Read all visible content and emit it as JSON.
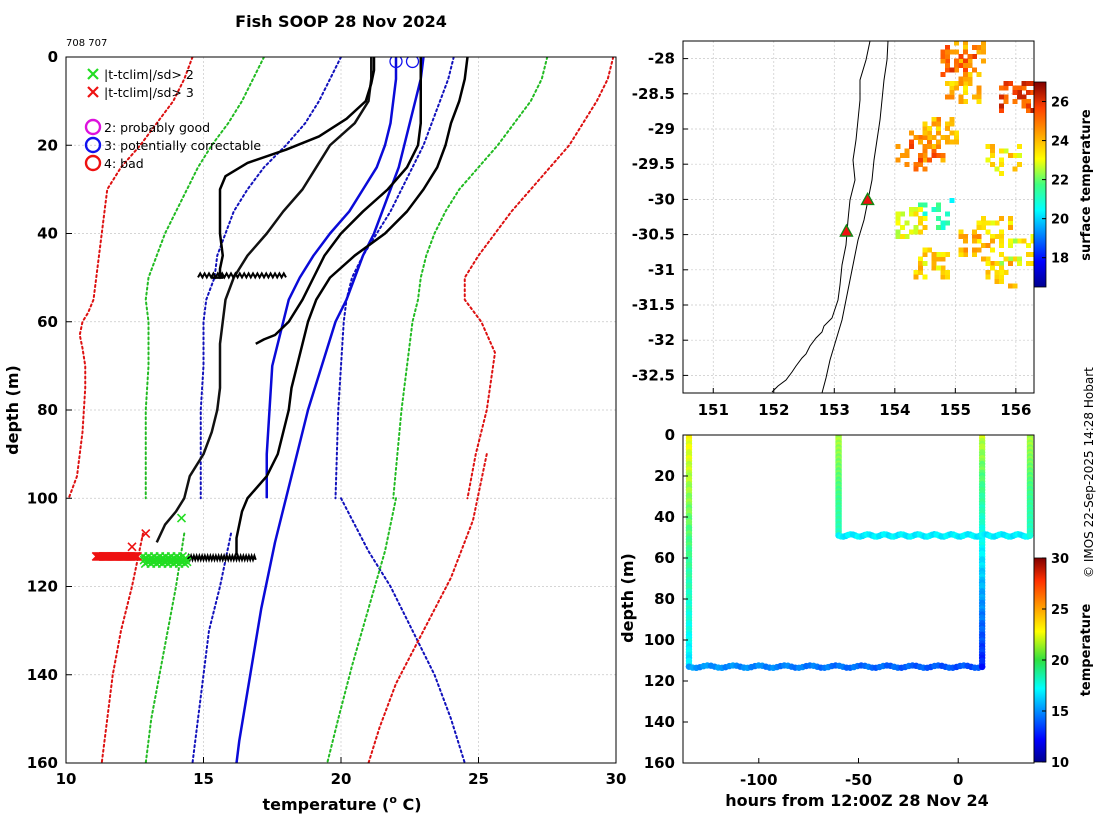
{
  "figure": {
    "title": "Fish SOOP 28 Nov 2024",
    "id_label": "708 707",
    "credit": "© IMOS 22-Sep-2025 14:28 Hobart"
  },
  "chart_data": [
    {
      "name": "profile",
      "type": "line",
      "xlabel": "temperature (",
      "xlabel_sup": "o",
      "xlabel_tail": " C)",
      "ylabel": "depth (m)",
      "xlim": [
        10,
        30
      ],
      "ylim": [
        0,
        160
      ],
      "xticks": [
        10,
        15,
        20,
        25,
        30
      ],
      "yticks": [
        0,
        20,
        40,
        60,
        80,
        100,
        120,
        140,
        160
      ],
      "legend": [
        {
          "symbol": "×",
          "color": "#22dd22",
          "label": "|t-tclim|/sd> 2"
        },
        {
          "symbol": "×",
          "color": "#ee1111",
          "label": "|t-tclim|/sd> 3"
        },
        {
          "symbol": "○",
          "color": "#dd11dd",
          "label": "2: probably good"
        },
        {
          "symbol": "○",
          "color": "#1111ee",
          "label": "3: potentially correctable"
        },
        {
          "symbol": "○",
          "color": "#ee1111",
          "label": "4: bad"
        }
      ],
      "series": [
        {
          "name": "clim-sd3-left",
          "color": "#dd1111",
          "style": "dotted",
          "x": [
            14.6,
            14.3,
            13.9,
            13.3,
            12.7,
            12.0,
            11.5,
            11.4,
            11.3,
            11.2,
            11.1,
            11.0,
            10.8,
            10.6,
            10.5,
            10.6,
            10.7,
            10.7,
            10.6,
            10.4,
            10.1
          ],
          "y": [
            0,
            5,
            10,
            15,
            20,
            25,
            30,
            35,
            40,
            45,
            50,
            55,
            58,
            60,
            63,
            66,
            70,
            75,
            85,
            95,
            100
          ]
        },
        {
          "name": "clim-sd2-left",
          "color": "#22bb22",
          "style": "dotted",
          "x": [
            17.2,
            16.8,
            16.4,
            15.9,
            15.3,
            14.8,
            14.4,
            14.0,
            13.6,
            13.3,
            13.0,
            12.9,
            13.0,
            13.0,
            12.9,
            12.9
          ],
          "y": [
            0,
            5,
            10,
            15,
            20,
            25,
            30,
            35,
            40,
            45,
            50,
            55,
            60,
            70,
            80,
            100
          ]
        },
        {
          "name": "clim-sd1-left",
          "color": "#1111bb",
          "style": "dotted",
          "x": [
            20.0,
            19.6,
            19.2,
            18.7,
            18.0,
            17.2,
            16.6,
            16.1,
            15.8,
            15.5,
            15.4,
            15.1,
            15.0,
            15.0,
            14.9,
            14.9
          ],
          "y": [
            0,
            5,
            10,
            15,
            20,
            25,
            30,
            35,
            40,
            45,
            50,
            55,
            60,
            70,
            80,
            100
          ]
        },
        {
          "name": "clim-mean",
          "color": "#111111",
          "style": "solid",
          "x": [
            21.1,
            21.1,
            21.0,
            20.5,
            19.6,
            19.1,
            18.6,
            17.9,
            17.3,
            16.6,
            16.1,
            15.8,
            15.7,
            15.6,
            15.6,
            15.6,
            15.5,
            15.3,
            15.0,
            14.5,
            14.3,
            14.0,
            13.6,
            13.3
          ],
          "y": [
            0,
            5,
            10,
            15,
            20,
            25,
            30,
            35,
            40,
            45,
            50,
            55,
            60,
            65,
            70,
            75,
            80,
            85,
            90,
            95,
            100,
            103,
            106,
            110
          ]
        },
        {
          "name": "clim-sd1-right",
          "color": "#1111bb",
          "style": "dotted",
          "x": [
            24.1,
            23.9,
            23.6,
            23.3,
            23.0,
            22.6,
            22.2,
            21.8,
            21.3,
            20.8,
            20.4,
            20.2,
            20.1,
            20.0,
            19.9,
            19.8
          ],
          "y": [
            0,
            5,
            10,
            15,
            20,
            25,
            30,
            35,
            40,
            45,
            50,
            55,
            60,
            70,
            80,
            100
          ]
        },
        {
          "name": "clim-sd2-right",
          "color": "#22bb22",
          "style": "dotted",
          "x": [
            27.5,
            27.3,
            26.9,
            26.3,
            25.7,
            25.0,
            24.3,
            23.8,
            23.4,
            23.1,
            22.9,
            22.8,
            22.6,
            22.4,
            22.2,
            21.9
          ],
          "y": [
            0,
            5,
            10,
            15,
            20,
            25,
            30,
            35,
            40,
            45,
            50,
            55,
            60,
            70,
            80,
            100
          ]
        },
        {
          "name": "clim-sd3-right",
          "color": "#dd1111",
          "style": "dotted",
          "x": [
            29.9,
            29.7,
            29.3,
            28.8,
            28.3,
            27.6,
            26.9,
            26.2,
            25.6,
            25.0,
            24.5,
            24.5,
            25.1,
            25.6,
            25.3,
            24.9,
            24.6
          ],
          "y": [
            0,
            5,
            10,
            15,
            20,
            25,
            30,
            35,
            40,
            45,
            50,
            55,
            60,
            67,
            80,
            90,
            100
          ]
        },
        {
          "name": "sd1-right-deep",
          "color": "#1111bb",
          "style": "dotted",
          "x": [
            20.0,
            21.0,
            21.8,
            22.6,
            23.4,
            24.0,
            24.4,
            24.5
          ],
          "y": [
            100,
            112,
            120,
            130,
            140,
            150,
            158,
            160
          ]
        },
        {
          "name": "sd1-left-deep",
          "color": "#1111bb",
          "style": "dotted",
          "x": [
            16.0,
            15.6,
            15.2,
            15.0,
            14.8,
            14.6
          ],
          "y": [
            108,
            120,
            130,
            140,
            150,
            160
          ]
        },
        {
          "name": "sd2-left-deep",
          "color": "#22bb22",
          "style": "dotted",
          "x": [
            14.3,
            14.0,
            13.7,
            13.4,
            13.1,
            12.9
          ],
          "y": [
            108,
            120,
            130,
            140,
            150,
            160
          ]
        },
        {
          "name": "sd2-right-deep",
          "color": "#22bb22",
          "style": "dotted",
          "x": [
            22.0,
            21.6,
            21.0,
            20.4,
            19.9,
            19.5
          ],
          "y": [
            100,
            112,
            125,
            138,
            150,
            160
          ]
        },
        {
          "name": "sd3-left-deep",
          "color": "#dd1111",
          "style": "dotted",
          "x": [
            12.8,
            12.4,
            12.0,
            11.7,
            11.5,
            11.3
          ],
          "y": [
            108,
            120,
            130,
            140,
            150,
            160
          ]
        },
        {
          "name": "sd3-right-deep",
          "color": "#dd1111",
          "style": "dotted",
          "x": [
            25.3,
            24.8,
            24.0,
            23.0,
            22.0,
            21.4,
            21.0
          ],
          "y": [
            90,
            105,
            118,
            130,
            142,
            152,
            160
          ]
        },
        {
          "name": "blue-profile-1",
          "color": "#0a0ad8",
          "style": "solid",
          "x": [
            22.0,
            22.0,
            21.9,
            21.8,
            21.6,
            21.3,
            20.8,
            20.3,
            19.6,
            19.0,
            18.5,
            18.1,
            17.9,
            17.7,
            17.5,
            17.4,
            17.3,
            17.3
          ],
          "y": [
            0,
            5,
            10,
            15,
            20,
            25,
            30,
            35,
            40,
            45,
            50,
            55,
            60,
            65,
            70,
            80,
            90,
            100
          ]
        },
        {
          "name": "blue-profile-2",
          "color": "#0a0ad8",
          "style": "solid",
          "x": [
            23.0,
            22.9,
            22.7,
            22.5,
            22.3,
            22.1,
            21.8,
            21.5,
            21.2,
            20.8,
            20.5,
            20.2,
            19.8,
            19.3,
            18.8,
            18.2,
            17.6,
            17.1,
            16.7,
            16.3,
            16.2
          ],
          "y": [
            0,
            5,
            10,
            15,
            20,
            25,
            30,
            35,
            40,
            45,
            50,
            55,
            60,
            70,
            80,
            95,
            110,
            125,
            140,
            155,
            160
          ]
        },
        {
          "name": "black-profile-1",
          "color": "#000000",
          "style": "solid",
          "x": [
            21.2,
            21.2,
            21.1,
            20.9,
            20.2,
            19.2,
            18.0,
            16.6,
            15.8,
            15.6,
            15.6,
            15.6,
            15.7,
            15.6,
            15.6,
            15.7,
            15.5,
            15.3
          ],
          "y": [
            0,
            3,
            6,
            10,
            14,
            18,
            21,
            24,
            27,
            30,
            35,
            40,
            45,
            48,
            49,
            50,
            50,
            50
          ]
        },
        {
          "name": "black-profile-2",
          "color": "#000000",
          "style": "solid",
          "x": [
            24.6,
            24.5,
            24.3,
            24.0,
            23.8,
            23.5,
            23.0,
            22.4,
            21.6,
            20.5,
            19.6,
            19.1,
            18.8,
            18.6,
            18.4,
            18.2,
            18.1,
            17.9,
            17.7,
            17.3,
            16.6,
            16.4,
            16.3,
            16.2,
            16.2,
            16.2
          ],
          "y": [
            0,
            5,
            10,
            15,
            20,
            25,
            30,
            35,
            40,
            45,
            50,
            55,
            60,
            65,
            70,
            75,
            80,
            85,
            90,
            95,
            100,
            103,
            106,
            109,
            112,
            113
          ]
        },
        {
          "name": "black-profile-3",
          "color": "#000000",
          "style": "solid",
          "x": [
            22.9,
            22.9,
            22.9,
            22.9,
            22.8,
            22.4,
            21.7,
            20.8,
            20.0,
            19.4,
            19.0,
            18.6,
            18.1,
            17.6,
            17.2,
            16.9
          ],
          "y": [
            0,
            5,
            10,
            15,
            20,
            25,
            30,
            35,
            40,
            45,
            50,
            55,
            60,
            63,
            64,
            65
          ]
        }
      ],
      "flags_circle": [
        {
          "x": 22.0,
          "y": 1
        },
        {
          "x": 22.6,
          "y": 1
        }
      ],
      "flag_x_green_range": [
        12.8,
        14.4
      ],
      "flag_x_red_range": [
        11.1,
        12.6
      ],
      "flag_depth": 114
    },
    {
      "name": "map",
      "type": "heatmap",
      "xlim": [
        150.5,
        156.3
      ],
      "ylim": [
        -32.75,
        -27.75
      ],
      "xticks": [
        151,
        152,
        153,
        154,
        155,
        156
      ],
      "yticks": [
        -28,
        -28.5,
        -29,
        -29.5,
        -30,
        -30.5,
        -31,
        -31.5,
        -32,
        -32.5
      ],
      "colorbar_label": "surface temperature",
      "colorbar_ticks": [
        18,
        20,
        22,
        24,
        26
      ],
      "colorbar_range": [
        16.5,
        27
      ],
      "markers": [
        {
          "lon": 153.55,
          "lat": -30.0
        },
        {
          "lon": 153.2,
          "lat": -30.45
        }
      ],
      "sst_patches": [
        {
          "lon": 154.5,
          "lat": -29.2,
          "value": 24.6
        },
        {
          "lon": 154.3,
          "lat": -29.35,
          "value": 25.2
        },
        {
          "lon": 154.7,
          "lat": -29.0,
          "value": 24.2
        },
        {
          "lon": 155.1,
          "lat": -28.4,
          "value": 24.0
        },
        {
          "lon": 155.2,
          "lat": -27.9,
          "value": 24.5
        },
        {
          "lon": 155.0,
          "lat": -28.0,
          "value": 25.3
        },
        {
          "lon": 154.6,
          "lat": -30.2,
          "value": 21.0
        },
        {
          "lon": 154.2,
          "lat": -30.3,
          "value": 23.2
        },
        {
          "lon": 155.6,
          "lat": -30.4,
          "value": 23.6
        },
        {
          "lon": 156.0,
          "lat": -30.7,
          "value": 23.0
        },
        {
          "lon": 154.6,
          "lat": -30.9,
          "value": 23.6
        },
        {
          "lon": 155.3,
          "lat": -30.6,
          "value": 24.0
        },
        {
          "lon": 156.0,
          "lat": -28.5,
          "value": 25.6
        },
        {
          "lon": 155.8,
          "lat": -29.4,
          "value": 23.5
        },
        {
          "lon": 155.7,
          "lat": -31.0,
          "value": 23.8
        }
      ]
    },
    {
      "name": "section",
      "type": "scatter",
      "xlabel": "hours from 12:00Z 28 Nov 24",
      "ylabel": "depth (m)",
      "xlim": [
        -138,
        38
      ],
      "ylim": [
        0,
        160
      ],
      "xticks": [
        -100,
        -50,
        0
      ],
      "yticks": [
        0,
        20,
        40,
        60,
        80,
        100,
        120,
        140,
        160
      ],
      "colorbar_label": "temperature",
      "colorbar_ticks": [
        10,
        15,
        20,
        25,
        30
      ],
      "colorbar_range": [
        10,
        30
      ],
      "tracks": [
        {
          "x": [
            -135,
            -135
          ],
          "y": [
            0,
            113
          ],
          "t": [
            22.5,
            17.0
          ]
        },
        {
          "x": [
            -135,
            12
          ],
          "y": [
            113,
            113
          ],
          "t": [
            15.5,
            14.0
          ]
        },
        {
          "x": [
            12,
            12
          ],
          "y": [
            0,
            113
          ],
          "t": [
            21.8,
            13.0
          ]
        },
        {
          "x": [
            -60,
            -60
          ],
          "y": [
            0,
            49
          ],
          "t": [
            21.5,
            18.8
          ]
        },
        {
          "x": [
            -60,
            36
          ],
          "y": [
            49,
            49
          ],
          "t": [
            17.2,
            17.2
          ]
        },
        {
          "x": [
            36,
            36
          ],
          "y": [
            0,
            49
          ],
          "t": [
            21.5,
            18.6
          ]
        }
      ]
    }
  ]
}
